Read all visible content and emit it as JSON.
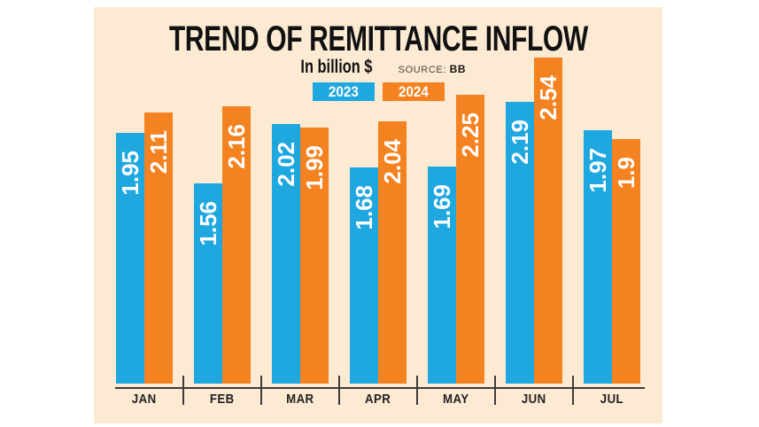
{
  "header": {
    "title": "TREND OF REMITTANCE INFLOW",
    "unit": "In billion $",
    "source_label": "SOURCE:",
    "source_value": "BB"
  },
  "legend": {
    "items": [
      {
        "label": "2023",
        "color": "#1fa7e0"
      },
      {
        "label": "2024",
        "color": "#f58220"
      }
    ]
  },
  "chart_data": {
    "type": "bar",
    "title": "TREND OF REMITTANCE INFLOW",
    "subtitle": "In billion $",
    "source": "SOURCE: BB",
    "categories": [
      "JAN",
      "FEB",
      "MAR",
      "APR",
      "MAY",
      "JUN",
      "JUL"
    ],
    "series": [
      {
        "name": "2023",
        "color": "#1fa7e0",
        "values": [
          1.95,
          1.56,
          2.02,
          1.68,
          1.69,
          2.19,
          1.97
        ],
        "labels": [
          "1.95",
          "1.56",
          "2.02",
          "1.68",
          "1.69",
          "2.19",
          "1.97"
        ]
      },
      {
        "name": "2024",
        "color": "#f58220",
        "values": [
          2.11,
          2.16,
          1.99,
          2.04,
          2.25,
          2.54,
          1.9
        ],
        "labels": [
          "2.11",
          "2.16",
          "1.99",
          "2.04",
          "2.25",
          "2.54",
          "1.9"
        ]
      }
    ],
    "ylim": [
      0,
      2.6
    ],
    "xlabel": "",
    "ylabel": "In billion $",
    "grid": false,
    "legend_position": "top-center",
    "value_label_style": "white-bold-rotated-90-inside-bar-top"
  },
  "colors": {
    "page_background": "#ffffff",
    "panel_background": "#fcead3",
    "bar_2023": "#1fa7e0",
    "bar_2024": "#f58220",
    "axis": "#3c3c3c",
    "title_text": "#111111",
    "bar_label_text": "#ffffff"
  }
}
